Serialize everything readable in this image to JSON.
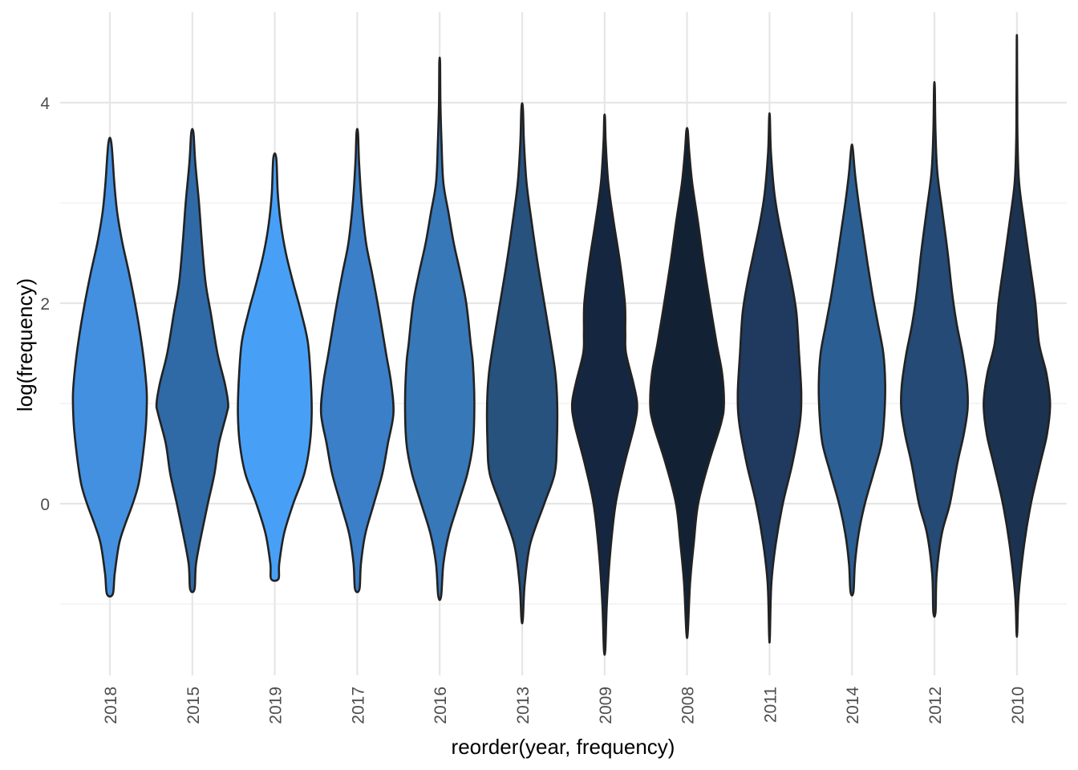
{
  "chart_data": {
    "type": "violin",
    "title": "",
    "xlabel": "reorder(year, frequency)",
    "ylabel": "log(frequency)",
    "ylim": [
      -1.75,
      4.9
    ],
    "yticks": [
      0,
      2,
      4
    ],
    "grid": true,
    "categories": [
      "2018",
      "2015",
      "2019",
      "2017",
      "2016",
      "2013",
      "2009",
      "2008",
      "2011",
      "2014",
      "2012",
      "2010"
    ],
    "fill_colors": [
      "#4390e0",
      "#2f6aa6",
      "#48a0f6",
      "#3b7fc8",
      "#3778b8",
      "#27527e",
      "#152740",
      "#122234",
      "#1f3a5e",
      "#2b5f93",
      "#244a75",
      "#1b3350"
    ],
    "violins": [
      {
        "name": "2018",
        "min": -0.9,
        "max": 3.6,
        "profile": [
          [
            -0.9,
            0.08
          ],
          [
            -0.7,
            0.13
          ],
          [
            -0.4,
            0.25
          ],
          [
            -0.2,
            0.42
          ],
          [
            0,
            0.62
          ],
          [
            0.2,
            0.78
          ],
          [
            0.5,
            0.9
          ],
          [
            0.8,
            0.98
          ],
          [
            1.1,
            1.0
          ],
          [
            1.4,
            0.93
          ],
          [
            1.7,
            0.82
          ],
          [
            2.0,
            0.68
          ],
          [
            2.3,
            0.52
          ],
          [
            2.6,
            0.34
          ],
          [
            2.9,
            0.2
          ],
          [
            3.2,
            0.12
          ],
          [
            3.6,
            0.04
          ]
        ]
      },
      {
        "name": "2015",
        "min": -0.85,
        "max": 3.7,
        "profile": [
          [
            -0.85,
            0.06
          ],
          [
            -0.6,
            0.1
          ],
          [
            -0.3,
            0.25
          ],
          [
            0,
            0.42
          ],
          [
            0.3,
            0.6
          ],
          [
            0.6,
            0.72
          ],
          [
            0.9,
            0.93
          ],
          [
            1.0,
            0.97
          ],
          [
            1.2,
            0.88
          ],
          [
            1.5,
            0.68
          ],
          [
            1.9,
            0.5
          ],
          [
            2.2,
            0.36
          ],
          [
            2.6,
            0.26
          ],
          [
            3.0,
            0.18
          ],
          [
            3.4,
            0.08
          ],
          [
            3.7,
            0.03
          ]
        ]
      },
      {
        "name": "2019",
        "min": -0.75,
        "max": 3.45,
        "profile": [
          [
            -0.75,
            0.1
          ],
          [
            -0.6,
            0.12
          ],
          [
            -0.3,
            0.25
          ],
          [
            0,
            0.5
          ],
          [
            0.3,
            0.8
          ],
          [
            0.6,
            0.95
          ],
          [
            0.9,
            1.0
          ],
          [
            1.2,
            0.98
          ],
          [
            1.6,
            0.9
          ],
          [
            1.9,
            0.72
          ],
          [
            2.2,
            0.5
          ],
          [
            2.5,
            0.3
          ],
          [
            2.8,
            0.16
          ],
          [
            3.1,
            0.08
          ],
          [
            3.45,
            0.04
          ]
        ]
      },
      {
        "name": "2017",
        "min": -0.85,
        "max": 3.7,
        "profile": [
          [
            -0.85,
            0.06
          ],
          [
            -0.6,
            0.1
          ],
          [
            -0.3,
            0.22
          ],
          [
            0,
            0.45
          ],
          [
            0.3,
            0.68
          ],
          [
            0.6,
            0.83
          ],
          [
            0.9,
            0.98
          ],
          [
            1.2,
            0.92
          ],
          [
            1.5,
            0.78
          ],
          [
            1.9,
            0.6
          ],
          [
            2.3,
            0.4
          ],
          [
            2.6,
            0.24
          ],
          [
            3.0,
            0.12
          ],
          [
            3.4,
            0.05
          ],
          [
            3.7,
            0.02
          ]
        ]
      },
      {
        "name": "2016",
        "min": -0.92,
        "max": 4.4,
        "profile": [
          [
            -0.92,
            0.04
          ],
          [
            -0.6,
            0.1
          ],
          [
            -0.3,
            0.25
          ],
          [
            0,
            0.5
          ],
          [
            0.3,
            0.75
          ],
          [
            0.6,
            0.9
          ],
          [
            1.0,
            0.94
          ],
          [
            1.4,
            0.9
          ],
          [
            1.6,
            0.84
          ],
          [
            2.0,
            0.72
          ],
          [
            2.3,
            0.56
          ],
          [
            2.6,
            0.38
          ],
          [
            2.9,
            0.24
          ],
          [
            3.2,
            0.1
          ],
          [
            3.6,
            0.05
          ],
          [
            4.0,
            0.02
          ],
          [
            4.4,
            0.01
          ]
        ]
      },
      {
        "name": "2013",
        "min": -1.15,
        "max": 3.95,
        "profile": [
          [
            -1.15,
            0.02
          ],
          [
            -0.8,
            0.07
          ],
          [
            -0.4,
            0.22
          ],
          [
            0,
            0.6
          ],
          [
            0.3,
            0.88
          ],
          [
            0.6,
            0.94
          ],
          [
            1.0,
            0.95
          ],
          [
            1.3,
            0.9
          ],
          [
            1.6,
            0.78
          ],
          [
            2.0,
            0.6
          ],
          [
            2.4,
            0.42
          ],
          [
            2.8,
            0.26
          ],
          [
            3.2,
            0.12
          ],
          [
            3.6,
            0.05
          ],
          [
            3.95,
            0.02
          ]
        ]
      },
      {
        "name": "2009",
        "min": -1.45,
        "max": 3.85,
        "profile": [
          [
            -1.45,
            0.02
          ],
          [
            -1.0,
            0.06
          ],
          [
            -0.5,
            0.15
          ],
          [
            0,
            0.3
          ],
          [
            0.4,
            0.54
          ],
          [
            0.8,
            0.82
          ],
          [
            1.0,
            0.88
          ],
          [
            1.2,
            0.78
          ],
          [
            1.5,
            0.58
          ],
          [
            1.7,
            0.56
          ],
          [
            2.0,
            0.55
          ],
          [
            2.4,
            0.42
          ],
          [
            2.8,
            0.25
          ],
          [
            3.2,
            0.1
          ],
          [
            3.6,
            0.03
          ],
          [
            3.85,
            0.01
          ]
        ]
      },
      {
        "name": "2008",
        "min": -1.28,
        "max": 3.72,
        "profile": [
          [
            -1.28,
            0.02
          ],
          [
            -0.8,
            0.08
          ],
          [
            -0.4,
            0.18
          ],
          [
            0,
            0.3
          ],
          [
            0.4,
            0.58
          ],
          [
            0.8,
            0.92
          ],
          [
            1.0,
            1.0
          ],
          [
            1.3,
            0.95
          ],
          [
            1.6,
            0.8
          ],
          [
            2.0,
            0.62
          ],
          [
            2.4,
            0.45
          ],
          [
            2.8,
            0.3
          ],
          [
            3.2,
            0.14
          ],
          [
            3.5,
            0.06
          ],
          [
            3.72,
            0.02
          ]
        ]
      },
      {
        "name": "2011",
        "min": -1.32,
        "max": 3.85,
        "profile": [
          [
            -1.32,
            0.01
          ],
          [
            -0.8,
            0.05
          ],
          [
            -0.4,
            0.17
          ],
          [
            0,
            0.36
          ],
          [
            0.4,
            0.62
          ],
          [
            0.8,
            0.82
          ],
          [
            1.1,
            0.86
          ],
          [
            1.5,
            0.8
          ],
          [
            1.9,
            0.73
          ],
          [
            2.2,
            0.6
          ],
          [
            2.5,
            0.43
          ],
          [
            2.8,
            0.26
          ],
          [
            3.1,
            0.13
          ],
          [
            3.5,
            0.04
          ],
          [
            3.85,
            0.01
          ]
        ]
      },
      {
        "name": "2014",
        "min": -0.88,
        "max": 3.55,
        "profile": [
          [
            -0.88,
            0.04
          ],
          [
            -0.6,
            0.08
          ],
          [
            -0.3,
            0.18
          ],
          [
            0,
            0.35
          ],
          [
            0.3,
            0.58
          ],
          [
            0.6,
            0.8
          ],
          [
            0.9,
            0.88
          ],
          [
            1.2,
            0.9
          ],
          [
            1.5,
            0.85
          ],
          [
            1.8,
            0.7
          ],
          [
            2.1,
            0.55
          ],
          [
            2.4,
            0.42
          ],
          [
            2.7,
            0.3
          ],
          [
            3.0,
            0.18
          ],
          [
            3.3,
            0.08
          ],
          [
            3.55,
            0.02
          ]
        ]
      },
      {
        "name": "2012",
        "min": -1.08,
        "max": 4.15,
        "profile": [
          [
            -1.08,
            0.03
          ],
          [
            -0.7,
            0.06
          ],
          [
            -0.3,
            0.2
          ],
          [
            0,
            0.42
          ],
          [
            0.4,
            0.62
          ],
          [
            0.7,
            0.8
          ],
          [
            0.95,
            0.9
          ],
          [
            1.2,
            0.88
          ],
          [
            1.5,
            0.76
          ],
          [
            1.8,
            0.6
          ],
          [
            2.1,
            0.48
          ],
          [
            2.5,
            0.36
          ],
          [
            2.9,
            0.22
          ],
          [
            3.3,
            0.08
          ],
          [
            3.7,
            0.03
          ],
          [
            4.15,
            0.01
          ]
        ]
      },
      {
        "name": "2010",
        "min": -1.28,
        "max": 4.6,
        "profile": [
          [
            -1.28,
            0.01
          ],
          [
            -0.9,
            0.05
          ],
          [
            -0.4,
            0.2
          ],
          [
            0,
            0.38
          ],
          [
            0.4,
            0.63
          ],
          [
            0.7,
            0.82
          ],
          [
            1.0,
            0.9
          ],
          [
            1.3,
            0.8
          ],
          [
            1.6,
            0.6
          ],
          [
            2.0,
            0.5
          ],
          [
            2.4,
            0.35
          ],
          [
            2.8,
            0.2
          ],
          [
            3.2,
            0.06
          ],
          [
            3.6,
            0.02
          ],
          [
            4.0,
            0.01
          ],
          [
            4.6,
            0.005
          ]
        ]
      }
    ]
  }
}
